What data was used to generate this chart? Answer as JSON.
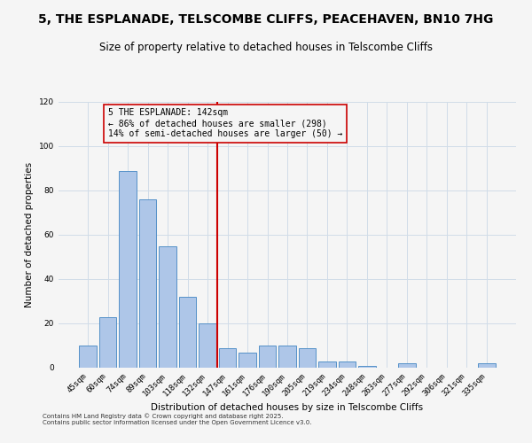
{
  "title": "5, THE ESPLANADE, TELSCOMBE CLIFFS, PEACEHAVEN, BN10 7HG",
  "subtitle": "Size of property relative to detached houses in Telscombe Cliffs",
  "xlabel": "Distribution of detached houses by size in Telscombe Cliffs",
  "ylabel": "Number of detached properties",
  "bar_labels": [
    "45sqm",
    "60sqm",
    "74sqm",
    "89sqm",
    "103sqm",
    "118sqm",
    "132sqm",
    "147sqm",
    "161sqm",
    "176sqm",
    "190sqm",
    "205sqm",
    "219sqm",
    "234sqm",
    "248sqm",
    "263sqm",
    "277sqm",
    "292sqm",
    "306sqm",
    "321sqm",
    "335sqm"
  ],
  "bar_values": [
    10,
    23,
    89,
    76,
    55,
    32,
    20,
    9,
    7,
    10,
    10,
    9,
    3,
    3,
    1,
    0,
    2,
    0,
    0,
    0,
    2
  ],
  "bar_color": "#aec6e8",
  "bar_edge_color": "#5591c8",
  "vline_color": "#cc0000",
  "annotation_title": "5 THE ESPLANADE: 142sqm",
  "annotation_line1": "← 86% of detached houses are smaller (298)",
  "annotation_line2": "14% of semi-detached houses are larger (50) →",
  "annotation_box_edge": "#cc0000",
  "ylim": [
    0,
    120
  ],
  "yticks": [
    0,
    20,
    40,
    60,
    80,
    100,
    120
  ],
  "footer1": "Contains HM Land Registry data © Crown copyright and database right 2025.",
  "footer2": "Contains public sector information licensed under the Open Government Licence v3.0.",
  "background_color": "#f5f5f5",
  "grid_color": "#d0dce8",
  "title_fontsize": 10,
  "subtitle_fontsize": 8.5,
  "annotation_fontsize": 7,
  "tick_fontsize": 6.5,
  "axis_label_fontsize": 7.5,
  "footer_fontsize": 5
}
